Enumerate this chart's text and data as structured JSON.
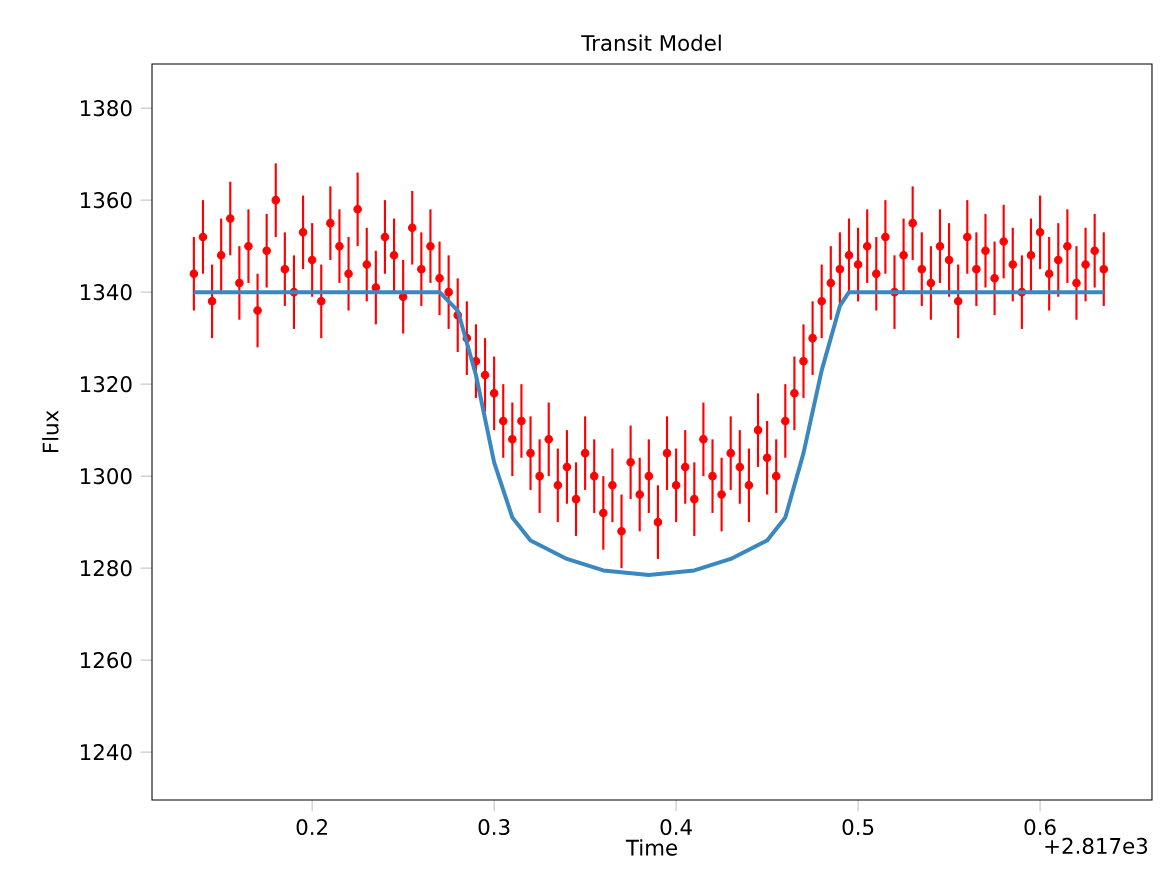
{
  "chart_data": {
    "type": "scatter",
    "title": "Transit Model",
    "xlabel": "Time",
    "ylabel": "Flux",
    "xlim": [
      0.112,
      0.6615
    ],
    "ylim": [
      1229.6,
      1389.6
    ],
    "xticks": [
      0.2,
      0.3,
      0.4,
      0.5,
      0.6
    ],
    "yticks": [
      1240,
      1260,
      1280,
      1300,
      1320,
      1340,
      1360,
      1380
    ],
    "annotations": [
      "+2.817e3"
    ],
    "grid": false,
    "series": [
      {
        "color": "#ff0000",
        "marker": "circle",
        "x": [
          0.135,
          0.14,
          0.145,
          0.15,
          0.155,
          0.16,
          0.165,
          0.17,
          0.175,
          0.18,
          0.185,
          0.19,
          0.195,
          0.2,
          0.205,
          0.21,
          0.215,
          0.22,
          0.225,
          0.23,
          0.235,
          0.24,
          0.245,
          0.25,
          0.255,
          0.26,
          0.265,
          0.27,
          0.275,
          0.28,
          0.285,
          0.29,
          0.295,
          0.3,
          0.305,
          0.31,
          0.315,
          0.32,
          0.325,
          0.33,
          0.335,
          0.34,
          0.345,
          0.35,
          0.355,
          0.36,
          0.365,
          0.37,
          0.375,
          0.38,
          0.385,
          0.39,
          0.395,
          0.4,
          0.405,
          0.41,
          0.415,
          0.42,
          0.425,
          0.43,
          0.435,
          0.44,
          0.445,
          0.45,
          0.455,
          0.46,
          0.465,
          0.47,
          0.475,
          0.48,
          0.485,
          0.49,
          0.495,
          0.5,
          0.505,
          0.51,
          0.515,
          0.52,
          0.525,
          0.53,
          0.535,
          0.54,
          0.545,
          0.55,
          0.555,
          0.56,
          0.565,
          0.57,
          0.575,
          0.58,
          0.585,
          0.59,
          0.595,
          0.6,
          0.605,
          0.61,
          0.615,
          0.62,
          0.625,
          0.63,
          0.635
        ],
        "values": [
          1344,
          1352,
          1338,
          1348,
          1356,
          1342,
          1350,
          1336,
          1349,
          1360,
          1345,
          1340,
          1353,
          1347,
          1338,
          1355,
          1350,
          1344,
          1358,
          1346,
          1341,
          1352,
          1348,
          1339,
          1354,
          1345,
          1350,
          1343,
          1340,
          1335,
          1330,
          1325,
          1322,
          1318,
          1312,
          1308,
          1312,
          1305,
          1300,
          1308,
          1298,
          1302,
          1295,
          1305,
          1300,
          1292,
          1298,
          1288,
          1303,
          1296,
          1300,
          1290,
          1305,
          1298,
          1302,
          1295,
          1308,
          1300,
          1296,
          1305,
          1302,
          1298,
          1310,
          1304,
          1300,
          1312,
          1318,
          1325,
          1330,
          1338,
          1342,
          1345,
          1348,
          1346,
          1350,
          1344,
          1352,
          1340,
          1348,
          1355,
          1345,
          1342,
          1350,
          1347,
          1338,
          1352,
          1345,
          1349,
          1343,
          1351,
          1346,
          1340,
          1348,
          1353,
          1344,
          1347,
          1350,
          1342,
          1346,
          1349,
          1345
        ],
        "errors": [
          8,
          8,
          8,
          8,
          8,
          8,
          8,
          8,
          8,
          8,
          8,
          8,
          8,
          8,
          8,
          8,
          8,
          8,
          8,
          8,
          8,
          8,
          8,
          8,
          8,
          8,
          8,
          8,
          8,
          8,
          8,
          8,
          8,
          8,
          8,
          8,
          8,
          8,
          8,
          8,
          8,
          8,
          8,
          8,
          8,
          8,
          8,
          8,
          8,
          8,
          8,
          8,
          8,
          8,
          8,
          8,
          8,
          8,
          8,
          8,
          8,
          8,
          8,
          8,
          8,
          8,
          8,
          8,
          8,
          8,
          8,
          8,
          8,
          8,
          8,
          8,
          8,
          8,
          8,
          8,
          8,
          8,
          8,
          8,
          8,
          8,
          8,
          8,
          8,
          8,
          8,
          8,
          8,
          8,
          8,
          8,
          8,
          8,
          8,
          8,
          8
        ]
      },
      {
        "type": "line",
        "color": "#3b87c0",
        "marker": "none",
        "line_style": "solid",
        "x": [
          0.135,
          0.27,
          0.28,
          0.29,
          0.3,
          0.31,
          0.32,
          0.34,
          0.36,
          0.385,
          0.41,
          0.43,
          0.45,
          0.46,
          0.47,
          0.48,
          0.49,
          0.495,
          0.635
        ],
        "values": [
          1340,
          1340,
          1336,
          1322,
          1303,
          1291,
          1286,
          1282,
          1279.5,
          1278.5,
          1279.5,
          1282,
          1286,
          1291,
          1305,
          1323,
          1337,
          1340,
          1340
        ]
      }
    ]
  }
}
